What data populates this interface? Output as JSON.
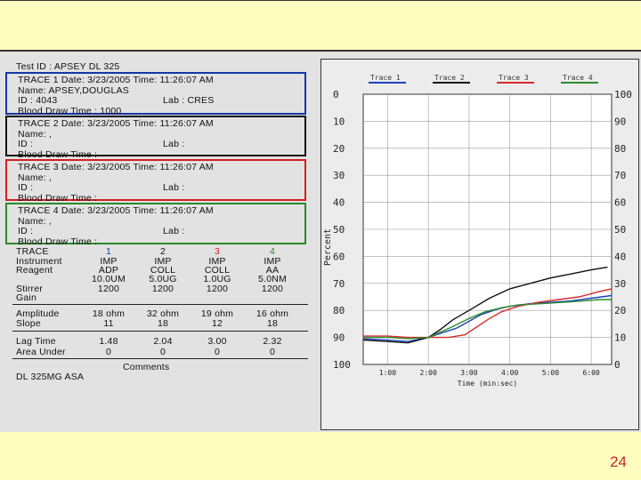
{
  "test_id": "Test ID : APSEY DL 325",
  "traces": [
    {
      "line1": "TRACE 1 Date: 3/23/2005 Time: 11:26:07 AM",
      "name": "Name: APSEY,DOUGLAS",
      "id": "ID  : 4043",
      "lab": "Lab : CRES",
      "blood": "Blood Draw Time : 1000"
    },
    {
      "line1": "TRACE 2 Date: 3/23/2005 Time: 11:26:07 AM",
      "name": "Name: ,",
      "id": "ID  :",
      "lab": "Lab :",
      "blood": "Blood Draw Time :"
    },
    {
      "line1": "TRACE 3 Date: 3/23/2005 Time: 11:26:07 AM",
      "name": "Name: ,",
      "id": "ID  :",
      "lab": "Lab :",
      "blood": "Blood Draw Time :"
    },
    {
      "line1": "TRACE 4 Date: 3/23/2005 Time: 11:26:07 AM",
      "name": "Name: ,",
      "id": "ID  :",
      "lab": "Lab :",
      "blood": "Blood Draw Time :"
    }
  ],
  "table": {
    "trace_label": "TRACE",
    "trace_numbers": [
      "1",
      "2",
      "3",
      "4"
    ],
    "trace_number_colors": [
      "#1436a8",
      "#111111",
      "#d22020",
      "#2b8a2b"
    ],
    "instrument_label": "Instrument",
    "reagent_label": "Reagent",
    "stirrer_label": "Stirrer",
    "gain_label": "Gain",
    "instrument": [
      "IMP",
      "IMP",
      "IMP",
      "IMP"
    ],
    "reagent_a": [
      "ADP",
      "COLL",
      "COLL",
      "AA"
    ],
    "reagent_b": [
      "10.0UM",
      "5.0UG",
      "1.0UG",
      "5.0NM"
    ],
    "stirrer": [
      "1200",
      "1200",
      "1200",
      "1200"
    ],
    "amplitude_label": "Amplitude",
    "slope_label": "Slope",
    "amplitude": [
      "18 ohm",
      "32 ohm",
      "19 ohm",
      "16 ohm"
    ],
    "slope": [
      "11",
      "18",
      "12",
      "18"
    ],
    "lag_label": "Lag Time",
    "area_label": "Area Under",
    "lag": [
      "1.48",
      "2.04",
      "3.00",
      "2.32"
    ],
    "area": [
      "0",
      "0",
      "0",
      "0"
    ],
    "comments_label": "Comments",
    "comment": "DL 325MG ASA"
  },
  "chart_data": {
    "type": "line",
    "xlabel": "Time (min:sec)",
    "ylabel": "Percent",
    "x_ticks": [
      "1:00",
      "2:00",
      "3:00",
      "4:00",
      "5:00",
      "6:00"
    ],
    "x_range": [
      0.4,
      6.5
    ],
    "y_left_ticks": [
      "0",
      "10",
      "20",
      "30",
      "40",
      "50",
      "60",
      "70",
      "80",
      "90",
      "100"
    ],
    "y_right_ticks": [
      "100",
      "90",
      "80",
      "70",
      "60",
      "50",
      "40",
      "30",
      "20",
      "10",
      "0"
    ],
    "y_range": [
      0,
      100
    ],
    "grid": true,
    "legend_position": "top",
    "series": [
      {
        "name": "Trace 1",
        "color": "#1f3fbf",
        "x": [
          0.4,
          1.0,
          1.5,
          2.0,
          2.3,
          2.7,
          3.0,
          3.3,
          3.7,
          4.0,
          4.5,
          5.0,
          5.5,
          6.0,
          6.5
        ],
        "y": [
          90.5,
          91,
          91.5,
          90,
          88.5,
          86.5,
          84,
          81.5,
          79.5,
          78.5,
          77.5,
          77,
          76.5,
          75.5,
          74.5
        ]
      },
      {
        "name": "Trace 2",
        "color": "#111111",
        "x": [
          0.4,
          1.0,
          1.5,
          2.0,
          2.3,
          2.6,
          3.0,
          3.5,
          4.0,
          4.5,
          5.0,
          5.5,
          6.0,
          6.4
        ],
        "y": [
          91,
          91.5,
          92,
          90,
          87,
          83.5,
          80,
          75.5,
          72,
          70,
          68,
          66.5,
          65,
          64
        ]
      },
      {
        "name": "Trace 3",
        "color": "#d42a2a",
        "x": [
          0.4,
          1.0,
          1.5,
          2.0,
          2.5,
          2.9,
          3.2,
          3.5,
          3.8,
          4.2,
          4.7,
          5.2,
          5.7,
          6.2,
          6.5
        ],
        "y": [
          89.5,
          89.5,
          90,
          90,
          90,
          89,
          86,
          83,
          80.5,
          78.5,
          77,
          76,
          75,
          73,
          72
        ]
      },
      {
        "name": "Trace 4",
        "color": "#2c8a2c",
        "x": [
          0.4,
          1.0,
          1.5,
          2.0,
          2.3,
          2.6,
          3.0,
          3.4,
          3.8,
          4.2,
          4.8,
          5.3,
          5.8,
          6.2,
          6.5
        ],
        "y": [
          90,
          90,
          90.5,
          90,
          88,
          86,
          83,
          80.5,
          79,
          78,
          77.5,
          77,
          76.5,
          76,
          76
        ]
      }
    ]
  },
  "page_number": "24"
}
